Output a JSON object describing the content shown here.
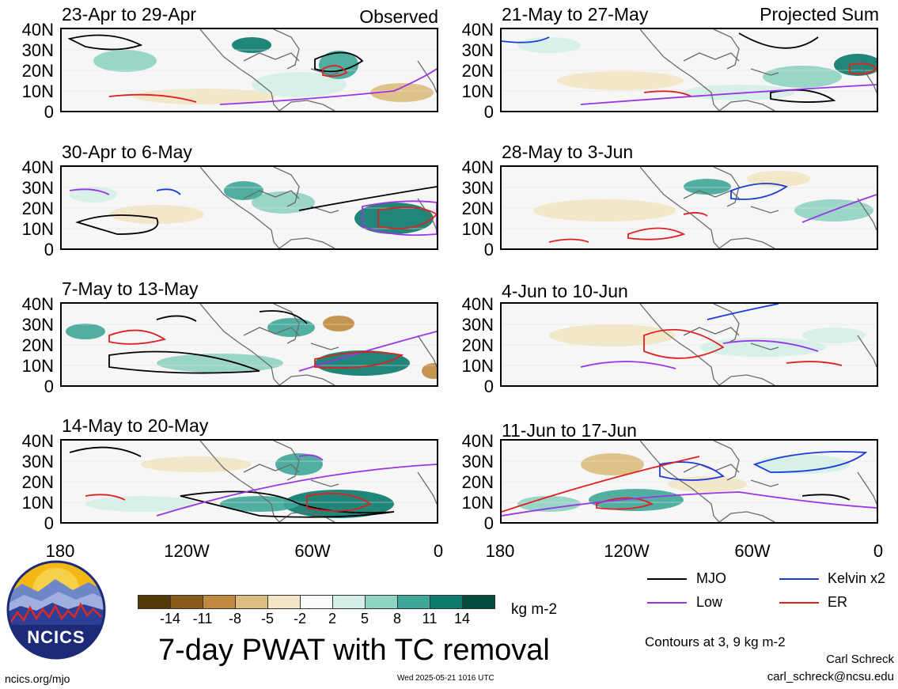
{
  "panels": [
    {
      "id": "p1",
      "title": "23-Apr to 29-Apr",
      "tag": "Observed"
    },
    {
      "id": "p2",
      "title": "21-May to 27-May",
      "tag": "Projected Sum"
    },
    {
      "id": "p3",
      "title": "30-Apr to 6-May",
      "tag": ""
    },
    {
      "id": "p4",
      "title": "28-May to 3-Jun",
      "tag": ""
    },
    {
      "id": "p5",
      "title": "7-May to 13-May",
      "tag": ""
    },
    {
      "id": "p6",
      "title": "4-Jun to 10-Jun",
      "tag": ""
    },
    {
      "id": "p7",
      "title": "14-May to 20-May",
      "tag": ""
    },
    {
      "id": "p8",
      "title": "11-Jun to 17-Jun",
      "tag": ""
    }
  ],
  "y_axis": [
    "40N",
    "30N",
    "20N",
    "10N",
    "0"
  ],
  "x_axis": [
    "180",
    "120W",
    "60W",
    "0"
  ],
  "colorbar": {
    "colors": [
      "#563806",
      "#8a5a18",
      "#c08a3e",
      "#ddbd7e",
      "#f3e6c4",
      "#fbfbfb",
      "#d4efe8",
      "#8fd3c3",
      "#3fa799",
      "#0a7a6d",
      "#004a3e"
    ],
    "labels": [
      "-14",
      "-11",
      "-8",
      "-5",
      "-2",
      "2",
      "5",
      "8",
      "11",
      "14"
    ],
    "units": "kg m-2"
  },
  "legend": {
    "mjo": {
      "label": "MJO",
      "color": "#000000"
    },
    "kelvin": {
      "label": "Kelvin x2",
      "color": "#1a3bd6"
    },
    "low": {
      "label": "Low",
      "color": "#9a35e3"
    },
    "er": {
      "label": "ER",
      "color": "#e02020"
    },
    "contours_note": "Contours at 3, 9 kg m-2"
  },
  "main_title": "7-day PWAT with TC removal",
  "logo_text": "NCICS",
  "footer": {
    "url": "ncics.org/mjo",
    "timestamp": "Wed 2025-05-21 1016 UTC",
    "author": "Carl Schreck",
    "email": "carl_schreck@ncsu.edu"
  }
}
